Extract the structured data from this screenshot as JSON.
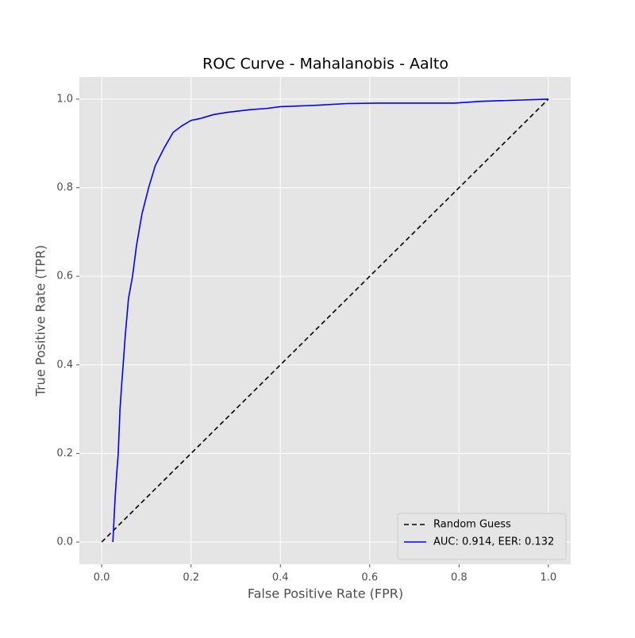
{
  "chart_data": {
    "type": "line",
    "title": "ROC Curve - Mahalanobis - Aalto",
    "x_label": "False Positive Rate (FPR)",
    "y_label": "True Positive Rate (TPR)",
    "xlim": [
      -0.05,
      1.05
    ],
    "ylim": [
      -0.05,
      1.05
    ],
    "xticks": [
      {
        "value": 0,
        "label": "0.0"
      },
      0.2,
      0.4,
      0.6,
      0.8,
      {
        "value": 1,
        "label": "1.0"
      }
    ],
    "yticks": [
      {
        "value": 0,
        "label": "0.0"
      },
      0.2,
      0.4,
      0.6,
      0.8,
      {
        "value": 1,
        "label": "1.0"
      }
    ],
    "grid": true,
    "legend": "lower right",
    "series": [
      {
        "name": "Random Guess",
        "color": "#000000",
        "dash": true,
        "x": [
          0,
          1
        ],
        "values": [
          0,
          1
        ]
      },
      {
        "name": "AUC: 0.914, EER: 0.132",
        "color": "#0000ff",
        "dash": false,
        "x": [
          0.025,
          0.03,
          0.034,
          0.037,
          0.041,
          0.045,
          0.048,
          0.053,
          0.06,
          0.069,
          0.078,
          0.09,
          0.105,
          0.12,
          0.14,
          0.16,
          0.18,
          0.2,
          0.22,
          0.25,
          0.28,
          0.33,
          0.37,
          0.4,
          0.48,
          0.55,
          0.62,
          0.7,
          0.79,
          0.85,
          1.0
        ],
        "values": [
          0.0,
          0.1,
          0.16,
          0.2,
          0.3,
          0.36,
          0.4,
          0.47,
          0.55,
          0.6,
          0.67,
          0.74,
          0.8,
          0.85,
          0.89,
          0.925,
          0.94,
          0.952,
          0.956,
          0.965,
          0.97,
          0.976,
          0.979,
          0.983,
          0.986,
          0.99,
          0.991,
          0.991,
          0.991,
          0.995,
          1.0
        ]
      }
    ]
  }
}
